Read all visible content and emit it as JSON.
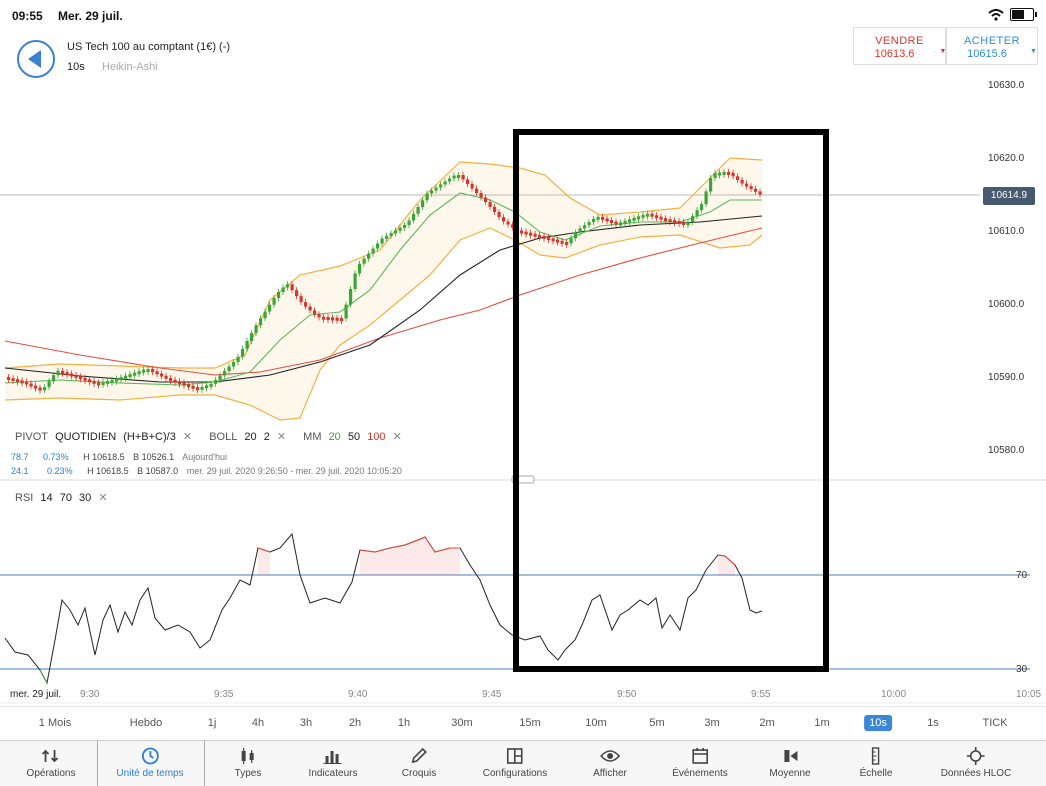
{
  "status": {
    "time": "09:55",
    "date": "Mer. 29 juil."
  },
  "instrument": {
    "title": "US Tech 100 au comptant (1€) (-)",
    "timeframe": "10s",
    "chart_type": "Heikin-Ashi"
  },
  "sell": {
    "label": "VENDRE",
    "price": "10613.6"
  },
  "buy": {
    "label": "ACHETER",
    "price": "10615.6"
  },
  "price_axis": {
    "labels": [
      "10630.0",
      "10620.0",
      "10610.0",
      "10600.0",
      "10590.0",
      "10580.0"
    ],
    "current": "10614.9"
  },
  "indicators": {
    "pivot": {
      "name": "PIVOT",
      "period": "QUOTIDIEN",
      "formula": "(H+B+C)/3"
    },
    "boll": {
      "name": "BOLL",
      "p1": "20",
      "p2": "2"
    },
    "mm": {
      "name": "MM",
      "v1": "20",
      "v2": "50",
      "v3": "100"
    },
    "row1": {
      "a": "78.7",
      "b": "0.73%",
      "h": "H 10618.5",
      "l": "B 10526.1",
      "period": "Aujourd'hui"
    },
    "row2": {
      "a": "24.1",
      "b": "0.23%",
      "h": "H 10618.5",
      "l": "B 10587.0",
      "period": "mer. 29 juil. 2020 9:26:50 - mer. 29 juil. 2020 10:05:20"
    }
  },
  "rsi": {
    "name": "RSI",
    "p1": "14",
    "p2": "70",
    "p3": "30",
    "upper_label": "70",
    "lower_label": "30"
  },
  "time_axis": {
    "date_label": "mer. 29 juil.",
    "labels": [
      "9:30",
      "9:35",
      "9:40",
      "9:45",
      "9:50",
      "9:55",
      "10:00",
      "10:05"
    ]
  },
  "timeframes": [
    "1 Mois",
    "Hebdo",
    "1j",
    "4h",
    "3h",
    "2h",
    "1h",
    "30m",
    "15m",
    "10m",
    "5m",
    "3m",
    "2m",
    "1m",
    "10s",
    "1s",
    "TICK"
  ],
  "timeframe_selected": "10s",
  "toolbar": [
    {
      "label": "Opérations",
      "icon": "arrows-updown-icon"
    },
    {
      "label": "Unité de temps",
      "icon": "clock-icon"
    },
    {
      "label": "Types",
      "icon": "candles-icon"
    },
    {
      "label": "Indicateurs",
      "icon": "bar-chart-icon"
    },
    {
      "label": "Croquis",
      "icon": "pencil-icon"
    },
    {
      "label": "Configurations",
      "icon": "layout-icon"
    },
    {
      "label": "Afficher",
      "icon": "eye-icon"
    },
    {
      "label": "Événements",
      "icon": "calendar-icon"
    },
    {
      "label": "Moyenne",
      "icon": "average-icon"
    },
    {
      "label": "Échelle",
      "icon": "scale-icon"
    },
    {
      "label": "Données HLOC",
      "icon": "crosshair-icon"
    }
  ],
  "colors": {
    "accent": "#2a7fd4",
    "up": "#3aa635",
    "down": "#d9342b",
    "boll": "#f5b041",
    "ma20": "#5cb85c",
    "ma50": "#222222",
    "ma100": "#e05040",
    "rsi_line": "#2e6fb5"
  }
}
